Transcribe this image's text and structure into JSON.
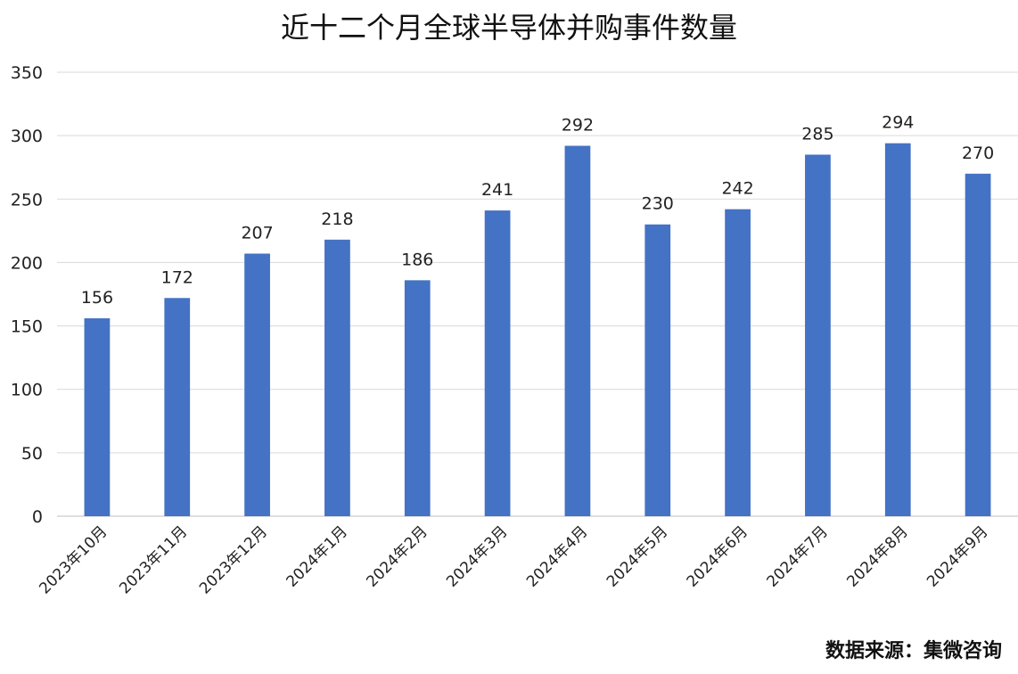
{
  "chart_data": {
    "type": "bar",
    "title": "近十二个月全球半导体并购事件数量",
    "categories": [
      "2023年10月",
      "2023年11月",
      "2023年12月",
      "2024年1月",
      "2024年2月",
      "2024年3月",
      "2024年4月",
      "2024年5月",
      "2024年6月",
      "2024年7月",
      "2024年8月",
      "2024年9月"
    ],
    "values": [
      156,
      172,
      207,
      218,
      186,
      241,
      292,
      230,
      242,
      285,
      294,
      270
    ],
    "xlabel": "",
    "ylabel": "",
    "ylim": [
      0,
      350
    ],
    "yticks": [
      0,
      50,
      100,
      150,
      200,
      250,
      300,
      350
    ],
    "grid": true,
    "bar_color": "#4472C4",
    "data_labels": true
  },
  "source_note": "数据来源：集微咨询"
}
